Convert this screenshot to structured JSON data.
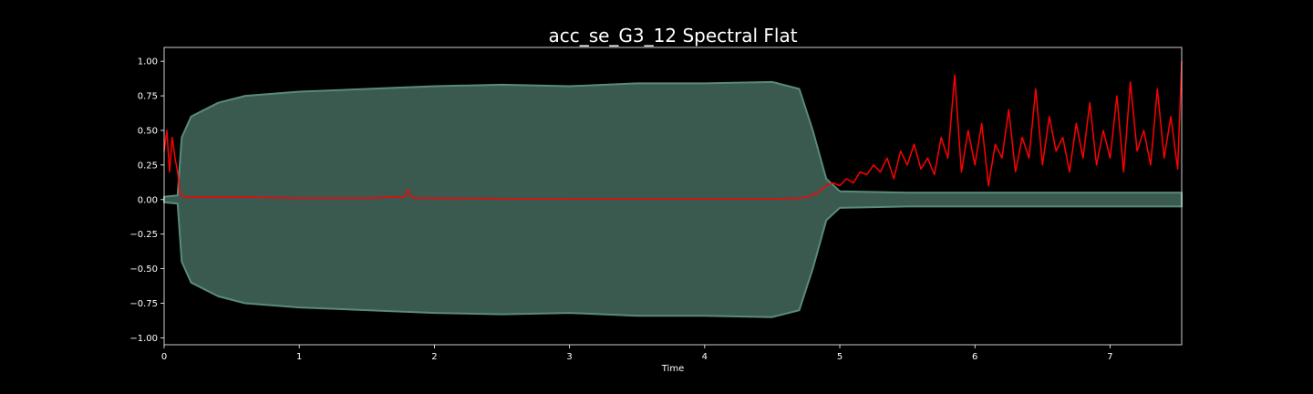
{
  "chart_data": {
    "type": "line",
    "title": "acc_se_G3_12 Spectral Flat",
    "xlabel": "Time",
    "ylabel": "",
    "xlim": [
      0,
      7.53
    ],
    "ylim": [
      -1.05,
      1.1
    ],
    "xticks": [
      0,
      1,
      2,
      3,
      4,
      5,
      6,
      7
    ],
    "yticks": [
      -1.0,
      -0.75,
      -0.5,
      -0.25,
      0.0,
      0.25,
      0.5,
      0.75,
      1.0
    ],
    "ytick_labels": [
      "−1.00",
      "−0.75",
      "−0.50",
      "−0.25",
      "0.00",
      "0.25",
      "0.50",
      "0.75",
      "1.00"
    ],
    "grid": false,
    "series": [
      {
        "kind": "waveform-envelope",
        "color": "#5a8a7c",
        "fill_color": "#3a5a50",
        "x": [
          0,
          0.1,
          0.13,
          0.2,
          0.4,
          0.6,
          1.0,
          1.5,
          2.0,
          2.5,
          3.0,
          3.5,
          4.0,
          4.5,
          4.7,
          4.8,
          4.9,
          5.0,
          5.5,
          6.0,
          6.5,
          7.0,
          7.53
        ],
        "upper": [
          0.02,
          0.03,
          0.45,
          0.6,
          0.7,
          0.75,
          0.78,
          0.8,
          0.82,
          0.83,
          0.82,
          0.84,
          0.84,
          0.85,
          0.8,
          0.5,
          0.15,
          0.06,
          0.05,
          0.05,
          0.05,
          0.05,
          0.05
        ],
        "lower": [
          -0.02,
          -0.03,
          -0.45,
          -0.6,
          -0.7,
          -0.75,
          -0.78,
          -0.8,
          -0.82,
          -0.83,
          -0.82,
          -0.84,
          -0.84,
          -0.85,
          -0.8,
          -0.5,
          -0.15,
          -0.06,
          -0.05,
          -0.05,
          -0.05,
          -0.05,
          -0.05
        ]
      },
      {
        "kind": "spectral-flatness",
        "color": "#ff0000",
        "x": [
          0,
          0.02,
          0.04,
          0.06,
          0.08,
          0.1,
          0.12,
          0.15,
          0.5,
          1.0,
          1.5,
          1.78,
          1.8,
          1.82,
          1.85,
          2.0,
          3.0,
          4.0,
          4.5,
          4.7,
          4.8,
          4.85,
          4.9,
          4.95,
          5.0,
          5.05,
          5.1,
          5.15,
          5.2,
          5.25,
          5.3,
          5.35,
          5.4,
          5.45,
          5.5,
          5.55,
          5.6,
          5.65,
          5.7,
          5.75,
          5.8,
          5.85,
          5.9,
          5.95,
          6.0,
          6.05,
          6.1,
          6.15,
          6.2,
          6.25,
          6.3,
          6.35,
          6.4,
          6.45,
          6.5,
          6.55,
          6.6,
          6.65,
          6.7,
          6.75,
          6.8,
          6.85,
          6.9,
          6.95,
          7.0,
          7.05,
          7.1,
          7.15,
          7.2,
          7.25,
          7.3,
          7.35,
          7.4,
          7.45,
          7.5,
          7.53
        ],
        "y": [
          0.35,
          0.5,
          0.2,
          0.45,
          0.3,
          0.2,
          0.03,
          0.02,
          0.02,
          0.01,
          0.01,
          0.02,
          0.07,
          0.03,
          0.01,
          0.01,
          0.005,
          0.005,
          0.005,
          0.01,
          0.03,
          0.06,
          0.1,
          0.12,
          0.1,
          0.15,
          0.12,
          0.2,
          0.18,
          0.25,
          0.2,
          0.3,
          0.15,
          0.35,
          0.25,
          0.4,
          0.22,
          0.3,
          0.18,
          0.45,
          0.3,
          0.9,
          0.2,
          0.5,
          0.25,
          0.55,
          0.1,
          0.4,
          0.3,
          0.65,
          0.2,
          0.45,
          0.3,
          0.8,
          0.25,
          0.6,
          0.35,
          0.45,
          0.2,
          0.55,
          0.3,
          0.7,
          0.25,
          0.5,
          0.3,
          0.75,
          0.2,
          0.85,
          0.35,
          0.5,
          0.25,
          0.8,
          0.3,
          0.6,
          0.22,
          1.0
        ]
      }
    ]
  },
  "colors": {
    "background": "#000000",
    "axes_edge": "#ffffff",
    "text": "#ffffff",
    "waveform_line": "#5a8a7c",
    "waveform_fill": "#3a5a50",
    "flatness_line": "#ff0000"
  }
}
